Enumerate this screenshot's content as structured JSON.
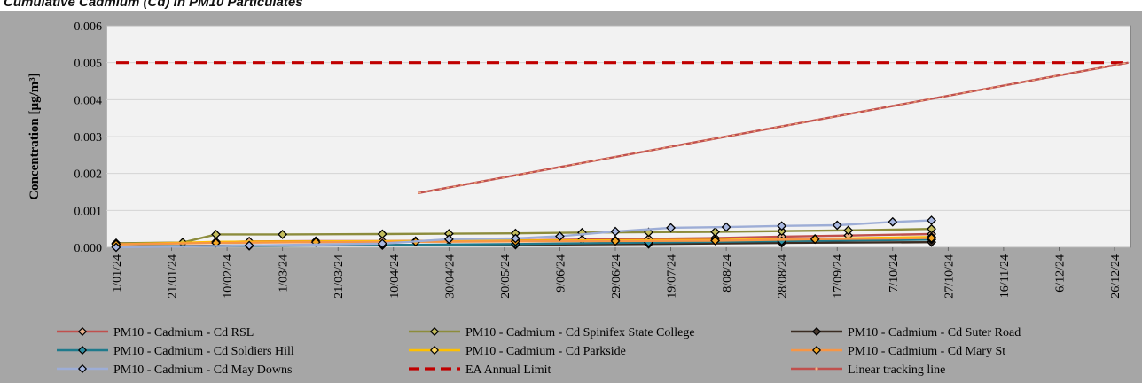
{
  "chart_data": {
    "type": "line",
    "title": "Cumulative Cadmium (Cd) in PM10 Particulates",
    "xlabel": "",
    "ylabel": "Concentration [µg/m³]",
    "ylim": [
      0,
      0.006
    ],
    "yticks": [
      "0.000",
      "0.001",
      "0.002",
      "0.003",
      "0.004",
      "0.005",
      "0.006"
    ],
    "xlim": [
      "2024-01-01",
      "2024-12-26"
    ],
    "xtick_dates": [
      "2024-01-01",
      "2024-01-21",
      "2024-02-10",
      "2024-03-01",
      "2024-03-21",
      "2024-04-10",
      "2024-04-30",
      "2024-05-20",
      "2024-06-09",
      "2024-06-29",
      "2024-07-19",
      "2024-08-08",
      "2024-08-28",
      "2024-09-17",
      "2024-10-07",
      "2024-10-27",
      "2024-11-16",
      "2024-12-06",
      "2024-12-26"
    ],
    "xtick_labels": [
      "1/01/24",
      "21/01/24",
      "10/02/24",
      "1/03/24",
      "21/03/24",
      "10/04/24",
      "30/04/24",
      "20/05/24",
      "9/06/24",
      "29/06/24",
      "19/07/24",
      "8/08/24",
      "28/08/24",
      "17/09/24",
      "7/10/24",
      "27/10/24",
      "16/11/24",
      "6/12/24",
      "26/12/24"
    ],
    "grid": true,
    "legend_position": "bottom",
    "series": [
      {
        "name": "PM10 - Cadmium - Cd RSL",
        "color": "#c0504d",
        "marker_fill": "#e8b08a",
        "marker": "diamond",
        "x": [
          "2024-01-01",
          "2024-01-25",
          "2024-02-18",
          "2024-03-13",
          "2024-04-06",
          "2024-04-30",
          "2024-05-24",
          "2024-06-17",
          "2024-07-11",
          "2024-08-04",
          "2024-08-28",
          "2024-09-21",
          "2024-10-21"
        ],
        "y": [
          0.00011,
          0.00012,
          0.00016,
          0.00017,
          0.00017,
          0.00018,
          0.00019,
          0.00021,
          0.00023,
          0.00025,
          0.00029,
          0.00032,
          0.00036
        ]
      },
      {
        "name": "PM10 - Cadmium - Cd Spinifex State College",
        "color": "#8c8c3c",
        "marker_fill": "#c4bd5e",
        "marker": "diamond",
        "x": [
          "2024-01-01",
          "2024-01-25",
          "2024-02-06",
          "2024-03-01",
          "2024-04-06",
          "2024-04-30",
          "2024-05-24",
          "2024-06-17",
          "2024-07-11",
          "2024-08-04",
          "2024-08-28",
          "2024-09-21",
          "2024-10-21"
        ],
        "y": [
          0.00011,
          0.00013,
          0.00035,
          0.00035,
          0.00036,
          0.00037,
          0.00038,
          0.0004,
          0.00041,
          0.00042,
          0.00044,
          0.00046,
          0.0005
        ]
      },
      {
        "name": "PM10 - Cadmium - Cd Suter Road",
        "color": "#3a2c22",
        "marker_fill": "#4a3a2e",
        "marker": "diamond",
        "x": [
          "2024-01-01",
          "2024-02-18",
          "2024-04-06",
          "2024-05-24",
          "2024-07-11",
          "2024-08-28",
          "2024-10-21"
        ],
        "y": [
          2e-05,
          5e-05,
          6e-05,
          7e-05,
          9e-05,
          0.00012,
          0.00014
        ]
      },
      {
        "name": "PM10 - Cadmium - Cd Soldiers Hill",
        "color": "#1f7a8c",
        "marker_fill": "#2e8fa3",
        "marker": "diamond",
        "x": [
          "2024-01-01",
          "2024-02-18",
          "2024-04-06",
          "2024-05-24",
          "2024-07-11",
          "2024-08-28",
          "2024-10-21"
        ],
        "y": [
          2e-05,
          4e-05,
          6e-05,
          9e-05,
          0.00013,
          0.00017,
          0.00021
        ]
      },
      {
        "name": "PM10 - Cadmium - Cd Parkside",
        "color": "#ffc000",
        "marker_fill": "#ffd966",
        "marker": "diamond",
        "x": [
          "2024-01-01",
          "2024-02-06",
          "2024-03-13",
          "2024-04-18",
          "2024-05-24",
          "2024-06-29",
          "2024-08-04",
          "2024-09-09",
          "2024-10-21"
        ],
        "y": [
          8e-05,
          0.00015,
          0.00016,
          0.00017,
          0.00018,
          0.00019,
          0.0002,
          0.00023,
          0.00028
        ]
      },
      {
        "name": "PM10 - Cadmium - Cd Mary St",
        "color": "#f79646",
        "marker_fill": "#f5a623",
        "marker": "diamond",
        "x": [
          "2024-01-01",
          "2024-02-06",
          "2024-03-13",
          "2024-04-18",
          "2024-05-24",
          "2024-06-29",
          "2024-08-04",
          "2024-09-09",
          "2024-10-21"
        ],
        "y": [
          8e-05,
          0.00012,
          0.00014,
          0.00015,
          0.00016,
          0.00017,
          0.00018,
          0.00022,
          0.00025
        ]
      },
      {
        "name": "PM10 - Cadmium - Cd May Downs",
        "color": "#9dadd6",
        "marker_fill": "#a9b8e0",
        "marker": "diamond",
        "x": [
          "2024-01-01",
          "2024-02-18",
          "2024-04-06",
          "2024-04-30",
          "2024-05-24",
          "2024-06-09",
          "2024-06-29",
          "2024-07-19",
          "2024-08-08",
          "2024-08-28",
          "2024-09-17",
          "2024-10-07",
          "2024-10-21"
        ],
        "y": [
          0.0,
          5e-05,
          0.0001,
          0.00022,
          0.00024,
          0.0003,
          0.00043,
          0.00053,
          0.00055,
          0.00058,
          0.0006,
          0.00069,
          0.00073
        ]
      },
      {
        "name": "EA Annual Limit",
        "color": "#c00000",
        "style": "dashed",
        "x": [
          "2024-01-01",
          "2024-12-31"
        ],
        "y": [
          0.005,
          0.005
        ]
      },
      {
        "name": "Linear tracking line",
        "color": "#c0504d",
        "marker_fill": "#f4b183",
        "marker": "dot",
        "x": [
          "2024-04-19",
          "2024-12-31"
        ],
        "y": [
          0.00147,
          0.005
        ]
      }
    ]
  }
}
